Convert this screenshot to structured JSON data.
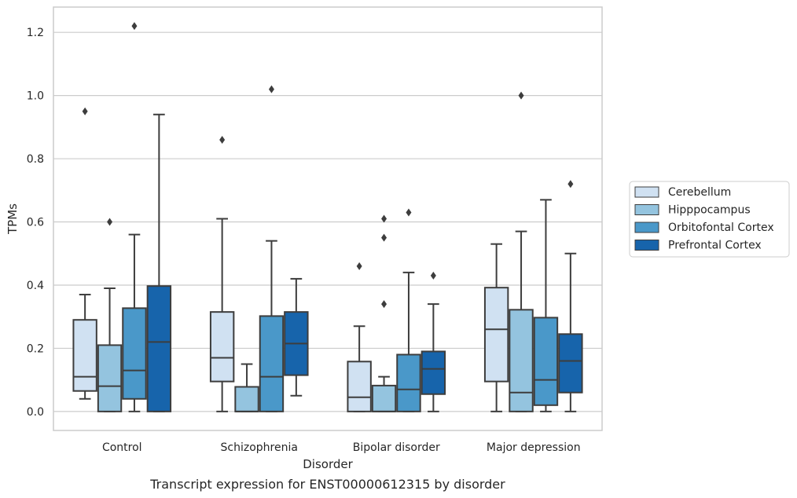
{
  "chart_data": {
    "type": "box",
    "title": "",
    "caption": "Transcript expression for ENST00000612315 by disorder",
    "xlabel": "Disorder",
    "ylabel": "TPMs",
    "ylim": [
      -0.06,
      1.28
    ],
    "yticks": [
      "0.0",
      "0.2",
      "0.4",
      "0.6",
      "0.8",
      "1.0",
      "1.2"
    ],
    "grid": "horizontal",
    "legend_position": "right",
    "categories": [
      "Control",
      "Schizophrenia",
      "Bipolar disorder",
      "Major depression"
    ],
    "series": [
      {
        "name": "Cerebellum",
        "color": "#d0e1f2",
        "boxes": [
          {
            "whisker_low": 0.04,
            "q1": 0.065,
            "median": 0.11,
            "q3": 0.29,
            "whisker_high": 0.37,
            "outliers": [
              0.95
            ]
          },
          {
            "whisker_low": 0.0,
            "q1": 0.095,
            "median": 0.17,
            "q3": 0.315,
            "whisker_high": 0.61,
            "outliers": [
              0.86
            ]
          },
          {
            "whisker_low": 0.0,
            "q1": 0.0,
            "median": 0.045,
            "q3": 0.158,
            "whisker_high": 0.27,
            "outliers": [
              0.46
            ]
          },
          {
            "whisker_low": 0.0,
            "q1": 0.095,
            "median": 0.26,
            "q3": 0.392,
            "whisker_high": 0.53,
            "outliers": []
          }
        ]
      },
      {
        "name": "Hipppocampus",
        "color": "#94c4df",
        "boxes": [
          {
            "whisker_low": 0.0,
            "q1": 0.0,
            "median": 0.08,
            "q3": 0.21,
            "whisker_high": 0.39,
            "outliers": [
              0.6
            ]
          },
          {
            "whisker_low": 0.0,
            "q1": 0.0,
            "median": 0.0,
            "q3": 0.078,
            "whisker_high": 0.15,
            "outliers": []
          },
          {
            "whisker_low": 0.0,
            "q1": 0.0,
            "median": 0.0,
            "q3": 0.082,
            "whisker_high": 0.11,
            "outliers": [
              0.61,
              0.55,
              0.34
            ]
          },
          {
            "whisker_low": 0.0,
            "q1": 0.0,
            "median": 0.06,
            "q3": 0.322,
            "whisker_high": 0.57,
            "outliers": [
              1.0
            ]
          }
        ]
      },
      {
        "name": "Orbitofontal Cortex",
        "color": "#4a98c9",
        "boxes": [
          {
            "whisker_low": 0.0,
            "q1": 0.04,
            "median": 0.13,
            "q3": 0.327,
            "whisker_high": 0.56,
            "outliers": [
              1.22
            ]
          },
          {
            "whisker_low": 0.0,
            "q1": 0.0,
            "median": 0.11,
            "q3": 0.302,
            "whisker_high": 0.54,
            "outliers": [
              1.02
            ]
          },
          {
            "whisker_low": 0.0,
            "q1": 0.0,
            "median": 0.07,
            "q3": 0.18,
            "whisker_high": 0.44,
            "outliers": [
              0.63
            ]
          },
          {
            "whisker_low": 0.0,
            "q1": 0.02,
            "median": 0.1,
            "q3": 0.297,
            "whisker_high": 0.67,
            "outliers": []
          }
        ]
      },
      {
        "name": "Prefrontal Cortex",
        "color": "#1764ab",
        "boxes": [
          {
            "whisker_low": 0.0,
            "q1": 0.0,
            "median": 0.22,
            "q3": 0.397,
            "whisker_high": 0.94,
            "outliers": []
          },
          {
            "whisker_low": 0.05,
            "q1": 0.115,
            "median": 0.215,
            "q3": 0.315,
            "whisker_high": 0.42,
            "outliers": []
          },
          {
            "whisker_low": 0.0,
            "q1": 0.055,
            "median": 0.135,
            "q3": 0.19,
            "whisker_high": 0.34,
            "outliers": [
              0.43
            ]
          },
          {
            "whisker_low": 0.0,
            "q1": 0.06,
            "median": 0.16,
            "q3": 0.245,
            "whisker_high": 0.5,
            "outliers": [
              0.72
            ]
          }
        ]
      }
    ]
  }
}
